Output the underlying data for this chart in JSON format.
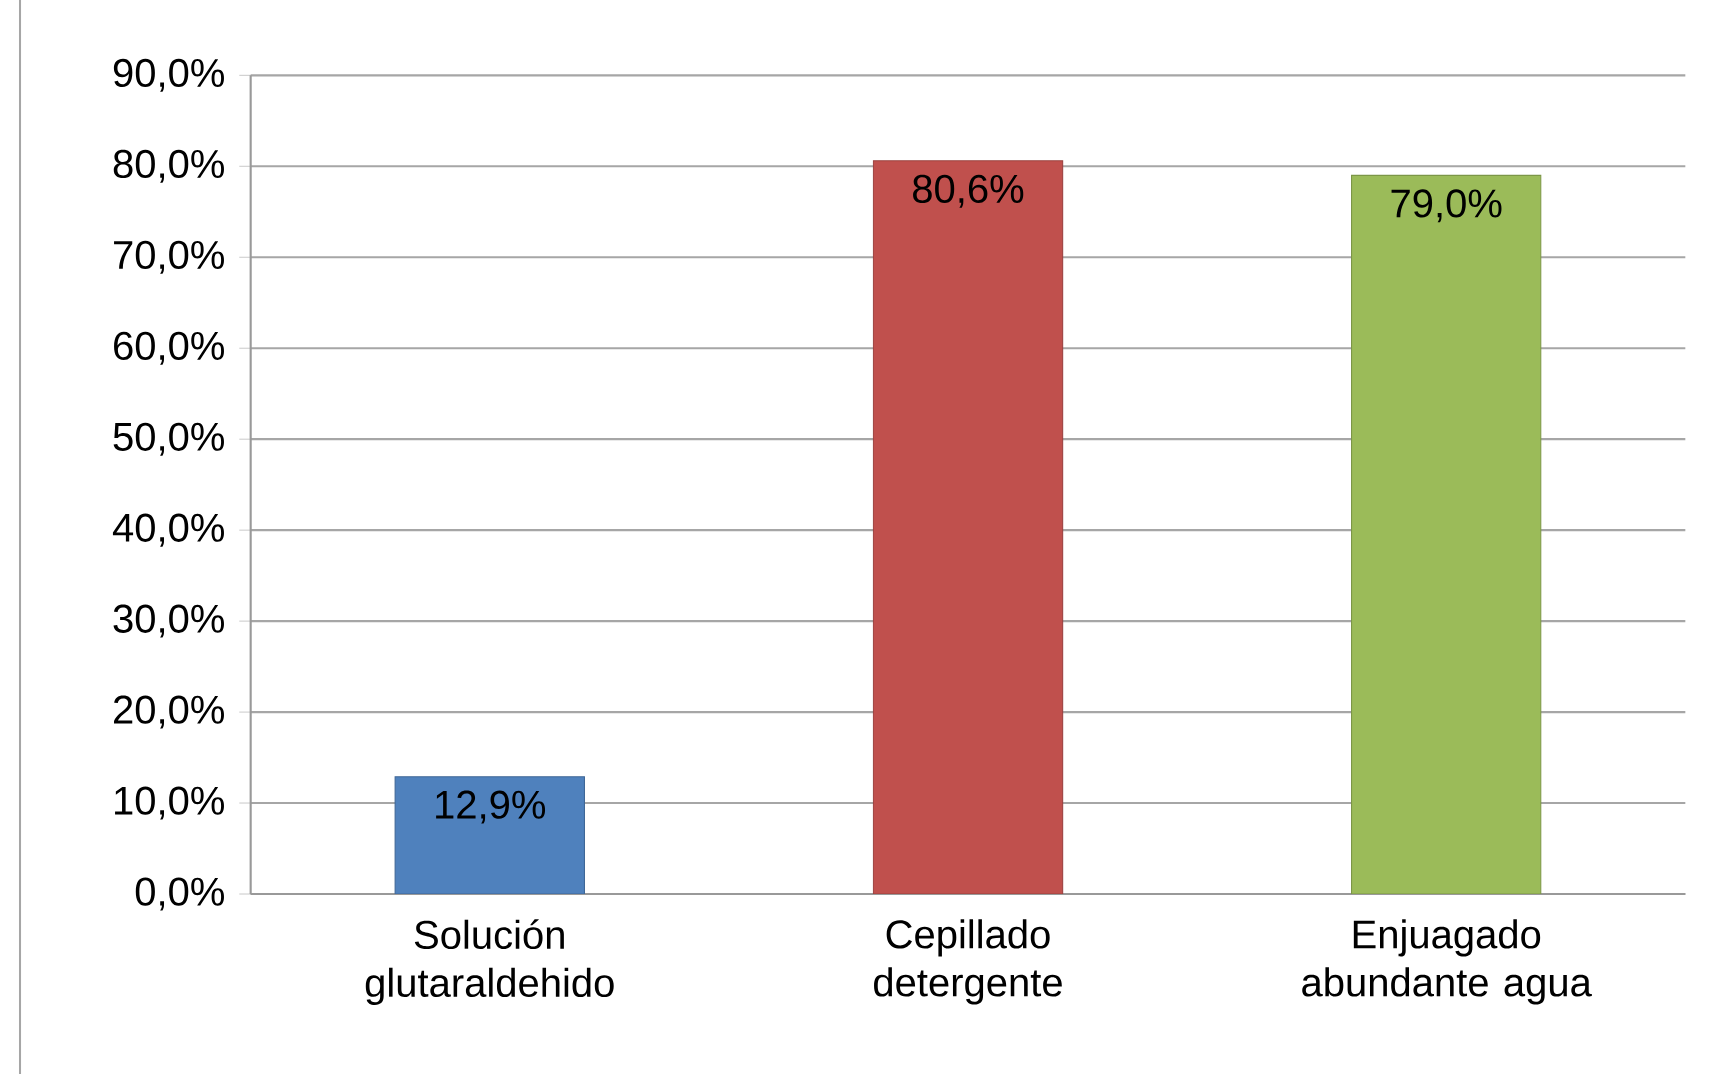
{
  "chart_data": {
    "type": "bar",
    "categories": [
      "Solución glutaraldehido",
      "Cepillado detergente",
      "Enjuagado abundante agua"
    ],
    "values": [
      12.9,
      80.6,
      79.0
    ],
    "colors": [
      "#4f81bd",
      "#c0504d",
      "#9bbb59"
    ],
    "value_labels": [
      "12,9%",
      "80,6%",
      "79,0%"
    ],
    "ylim": [
      0,
      90
    ],
    "yticks": [
      {
        "value": 0,
        "label": "0,0%"
      },
      {
        "value": 10,
        "label": "10,0%"
      },
      {
        "value": 20,
        "label": "20,0%"
      },
      {
        "value": 30,
        "label": "30,0%"
      },
      {
        "value": 40,
        "label": "40,0%"
      },
      {
        "value": 50,
        "label": "50,0%"
      },
      {
        "value": 60,
        "label": "60,0%"
      },
      {
        "value": 70,
        "label": "70,0%"
      },
      {
        "value": 80,
        "label": "80,0%"
      },
      {
        "value": 90,
        "label": "90,0%"
      }
    ],
    "grid": "y"
  }
}
